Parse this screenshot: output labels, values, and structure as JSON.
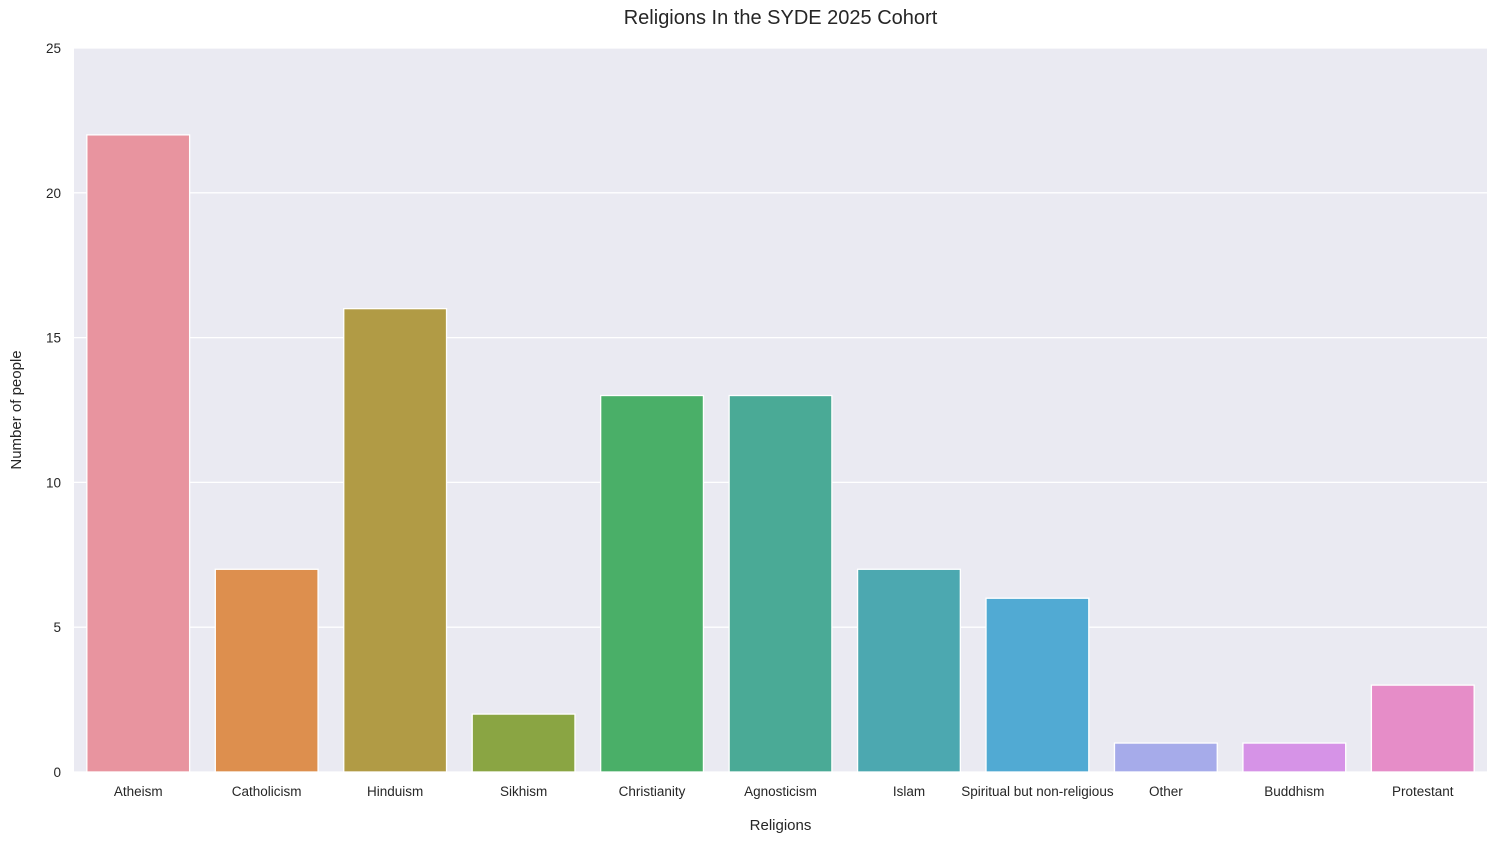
{
  "chart_data": {
    "type": "bar",
    "title": "Religions In the SYDE 2025 Cohort",
    "xlabel": "Religions",
    "ylabel": "Number of people",
    "categories": [
      "Atheism",
      "Catholicism",
      "Hinduism",
      "Sikhism",
      "Christianity",
      "Agnosticism",
      "Islam",
      "Spiritual but non-religious",
      "Other",
      "Buddhism",
      "Protestant"
    ],
    "values": [
      22,
      7,
      16,
      2,
      13,
      13,
      7,
      6,
      1,
      1,
      3
    ],
    "colors": [
      "#e8949f",
      "#dd8f4e",
      "#b19b45",
      "#8aa543",
      "#4aaf68",
      "#4aaa96",
      "#4ca8b0",
      "#51aad3",
      "#a6abea",
      "#d693e7",
      "#e68dc8"
    ],
    "ylim": [
      0,
      25
    ],
    "yticks": [
      0,
      5,
      10,
      15,
      20,
      25
    ],
    "grid": true,
    "style": {
      "plot_background": "#eaeaf2",
      "grid_color": "#ffffff",
      "text_color": "#262626"
    }
  }
}
